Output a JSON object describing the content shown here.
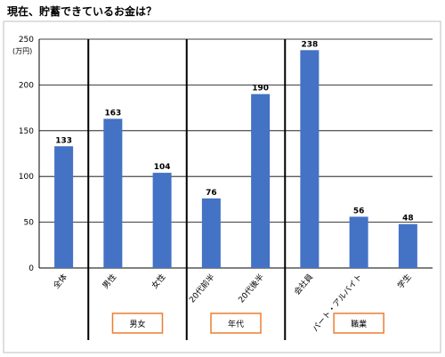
{
  "chart_data": {
    "type": "bar",
    "title": "現在、貯蓄できているお金は？",
    "ylabel": "(万円)",
    "ylim": [
      0,
      250
    ],
    "yticks": [
      0,
      50,
      100,
      150,
      200,
      250
    ],
    "grid": true,
    "legend": "none",
    "bar_color": "#4472C4",
    "categories": [
      "全体",
      "男性",
      "女性",
      "20代前半",
      "20代後半",
      "会社員",
      "パート・アルバイト",
      "学生"
    ],
    "values": [
      133,
      163,
      104,
      76,
      190,
      238,
      56,
      48
    ],
    "groups": [
      {
        "label": "男女",
        "categories": [
          "男性",
          "女性"
        ]
      },
      {
        "label": "年代",
        "categories": [
          "20代前半",
          "20代後半"
        ]
      },
      {
        "label": "職業",
        "categories": [
          "会社員",
          "パート・アルバイト",
          "学生"
        ]
      }
    ],
    "group_box_color": "#ED7D31"
  }
}
